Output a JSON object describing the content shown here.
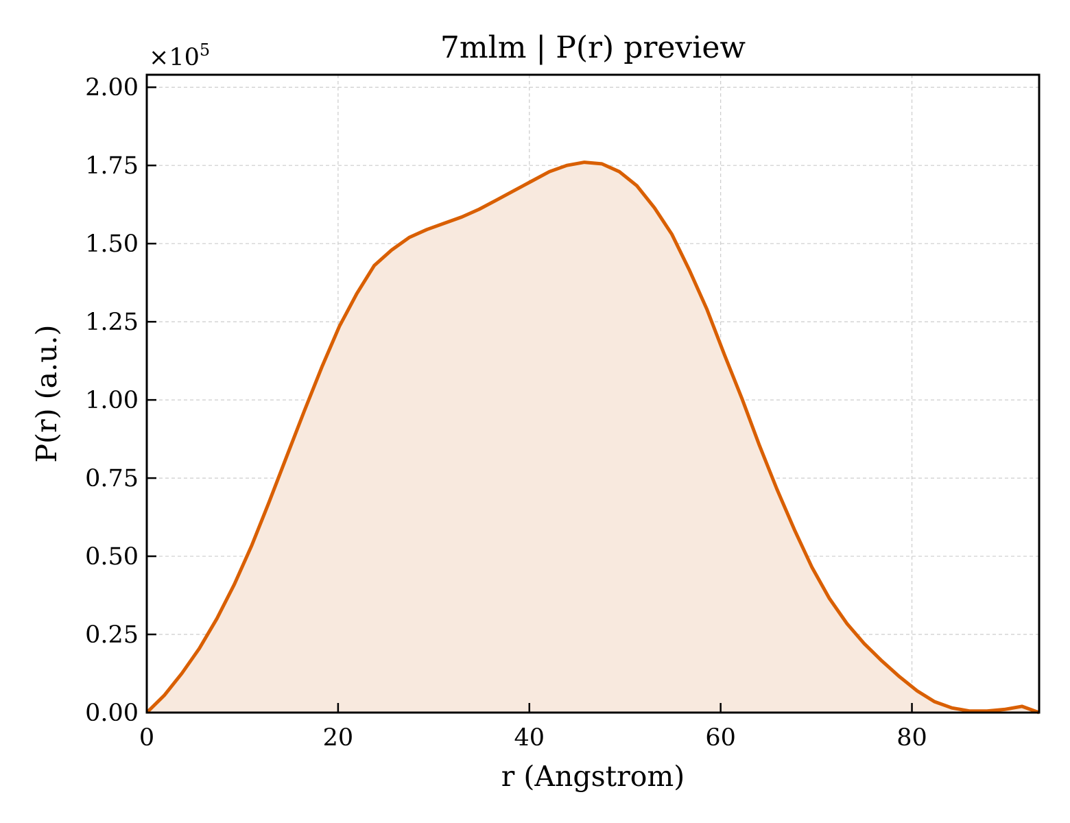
{
  "chart_data": {
    "type": "area",
    "title": "7mlm | P(r) preview",
    "xlabel": "r (Angstrom)",
    "ylabel": "P(r) (a.u.)",
    "y_offset_base": "×10",
    "y_offset_exp": "5",
    "y_multiplier": 100000,
    "xlim": [
      0,
      93.3
    ],
    "ylim": [
      0,
      2.04
    ],
    "x_ticks": [
      0,
      20,
      40,
      60,
      80
    ],
    "x_tick_labels": [
      "0",
      "20",
      "40",
      "60",
      "80"
    ],
    "y_ticks": [
      0,
      0.25,
      0.5,
      0.75,
      1.0,
      1.25,
      1.5,
      1.75,
      2.0
    ],
    "y_tick_labels": [
      "0.00",
      "0.25",
      "0.50",
      "0.75",
      "1.00",
      "1.25",
      "1.50",
      "1.75",
      "2.00"
    ],
    "grid": true,
    "line_color": "#d95f02",
    "fill_color": "#f8e9de",
    "series": [
      {
        "x": [
          0,
          1.83,
          3.66,
          5.49,
          7.32,
          9.15,
          10.98,
          12.81,
          14.64,
          16.47,
          18.3,
          20.13,
          21.96,
          23.79,
          25.62,
          27.45,
          29.28,
          31.11,
          32.94,
          34.77,
          36.6,
          38.43,
          40.26,
          42.09,
          43.92,
          45.75,
          47.58,
          49.41,
          51.24,
          53.07,
          54.9,
          56.73,
          58.56,
          60.39,
          62.22,
          64.05,
          65.88,
          67.71,
          69.54,
          71.37,
          73.2,
          75.03,
          76.86,
          78.69,
          80.52,
          82.35,
          84.18,
          86.01,
          87.84,
          89.67,
          91.5,
          93.3
        ],
        "y": [
          0.0,
          0.055,
          0.125,
          0.205,
          0.3,
          0.41,
          0.535,
          0.675,
          0.82,
          0.965,
          1.105,
          1.235,
          1.34,
          1.43,
          1.48,
          1.52,
          1.545,
          1.565,
          1.585,
          1.61,
          1.64,
          1.67,
          1.7,
          1.73,
          1.75,
          1.76,
          1.755,
          1.73,
          1.685,
          1.615,
          1.53,
          1.415,
          1.29,
          1.145,
          1.005,
          0.855,
          0.715,
          0.585,
          0.465,
          0.365,
          0.285,
          0.22,
          0.165,
          0.115,
          0.07,
          0.035,
          0.015,
          0.005,
          0.005,
          0.01,
          0.02,
          0.0
        ]
      }
    ]
  }
}
